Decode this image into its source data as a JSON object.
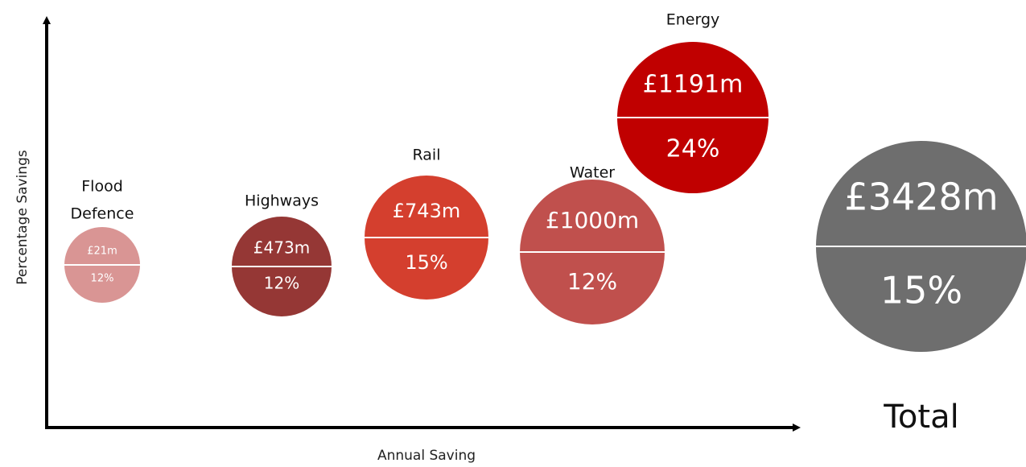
{
  "diagram": {
    "y_axis_label": "Percentage Savings",
    "x_axis_label": "Annual Saving",
    "bubbles": [
      {
        "name": [
          "Flood",
          "Defence"
        ],
        "saving": "£21m",
        "percent": "12%",
        "color": "#d99594"
      },
      {
        "name": [
          "Highways"
        ],
        "saving": "£473m",
        "percent": "12%",
        "color": "#953735"
      },
      {
        "name": [
          "Rail"
        ],
        "saving": "£743m",
        "percent": "15%",
        "color": "#d43f2e"
      },
      {
        "name": [
          "Water"
        ],
        "saving": "£1000m",
        "percent": "12%",
        "color": "#c0504d"
      },
      {
        "name": [
          "Energy"
        ],
        "saving": "£1191m",
        "percent": "24%",
        "color": "#c00000"
      },
      {
        "name": [
          "Total"
        ],
        "saving": "£3428m",
        "percent": "15%",
        "color": "#6e6e6e"
      }
    ]
  }
}
